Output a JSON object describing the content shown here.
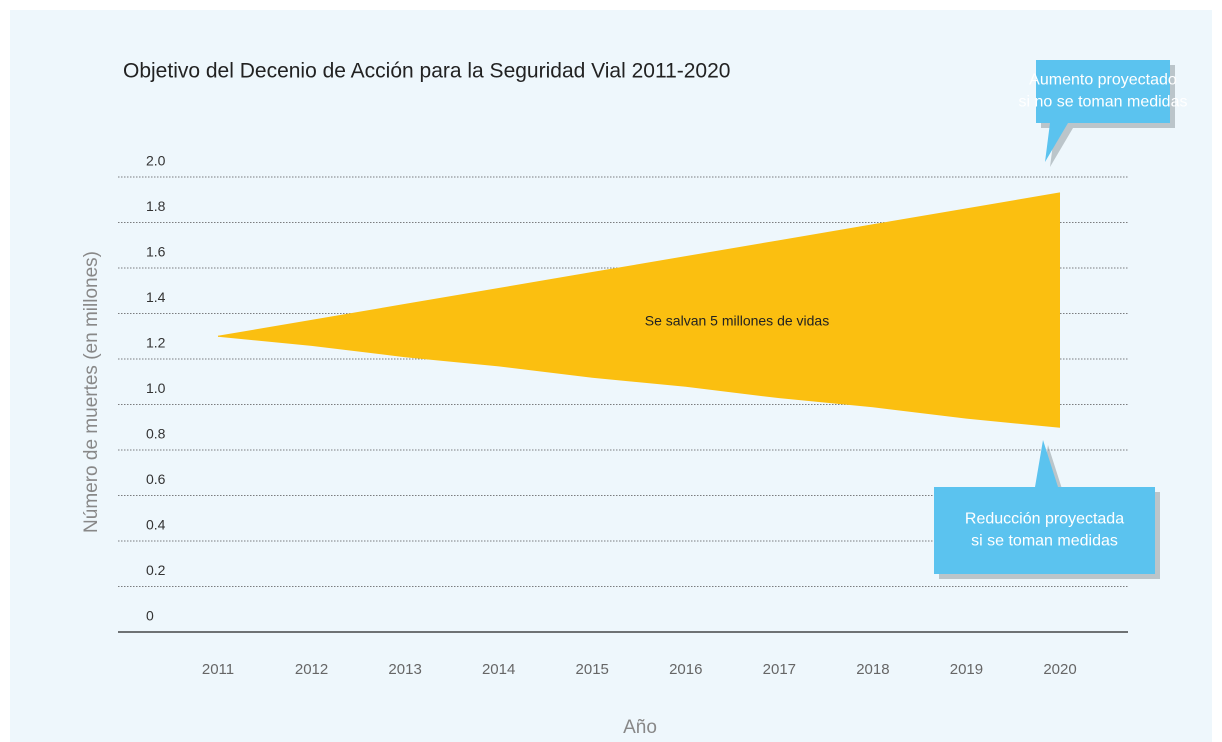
{
  "chart_data": {
    "type": "area",
    "title": "Objetivo del Decenio de Acción para la Seguridad Vial 2011-2020",
    "y_label": "Número de muertes (en millones)",
    "x_label": "Año",
    "categories": [
      "2011",
      "2012",
      "2013",
      "2014",
      "2015",
      "2016",
      "2017",
      "2018",
      "2019",
      "2020"
    ],
    "series": [
      {
        "color": "#fbbf10",
        "values": [
          1.3,
          1.37,
          1.44,
          1.51,
          1.58,
          1.65,
          1.72,
          1.79,
          1.86,
          1.93
        ]
      },
      {
        "color": "#fbbf10",
        "values": [
          1.3,
          1.26,
          1.21,
          1.17,
          1.12,
          1.08,
          1.03,
          0.99,
          0.94,
          0.9
        ]
      }
    ],
    "ylim": [
      0,
      2.0
    ],
    "yticks": [
      0,
      0.2,
      0.4,
      0.6,
      0.8,
      {
        "value": 1.0,
        "label": "1.0"
      },
      1.2,
      1.4,
      1.6,
      1.8,
      {
        "value": 2.0,
        "label": "2.0"
      }
    ],
    "grid": true,
    "annotations": [
      {
        "text": "Se salvan 5 millones de vidas"
      },
      {
        "lines": [
          "Aumento proyectado",
          "si no se toman medidas"
        ],
        "color": "#5bc3ef"
      },
      {
        "lines": [
          "Reducción proyectada",
          "si se toman medidas"
        ],
        "color": "#5bc3ef"
      }
    ]
  }
}
